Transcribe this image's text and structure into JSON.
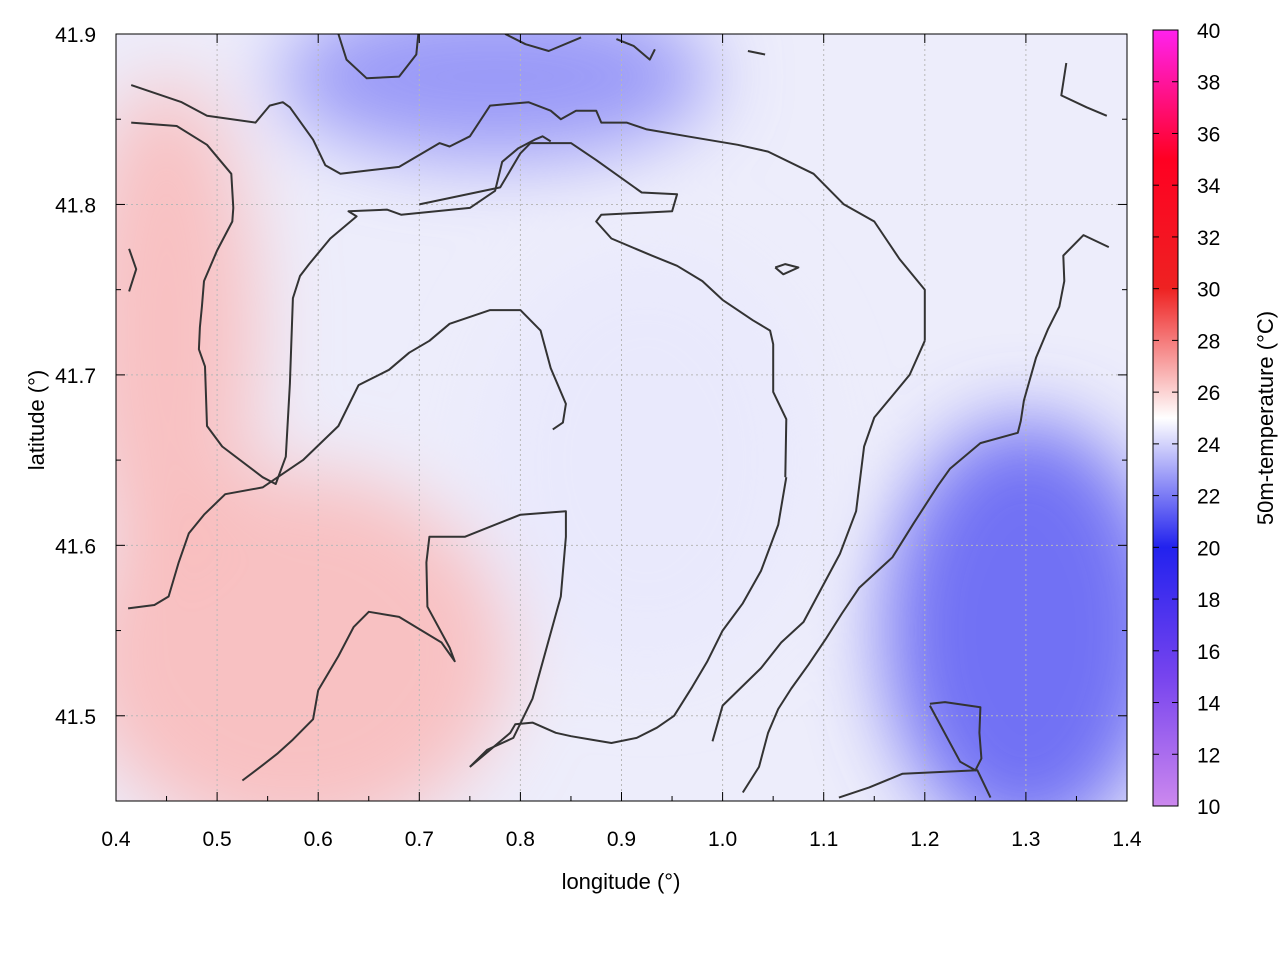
{
  "chart_data": {
    "type": "heatmap",
    "title": "",
    "xlabel": "longitude (°)",
    "ylabel": "latitude (°)",
    "colorbar_label": "50m-temperature (°C)",
    "xlim": [
      0.4,
      1.4
    ],
    "ylim": [
      41.45,
      41.9
    ],
    "xticks": [
      0.4,
      0.5,
      0.6,
      0.7,
      0.8,
      0.9,
      1.0,
      1.1,
      1.2,
      1.3,
      1.4
    ],
    "xtick_labels": [
      "0.4",
      "0.5",
      "0.6",
      "0.7",
      "0.8",
      "0.9",
      "1.0",
      "1.1",
      "1.2",
      "1.3",
      "1.4"
    ],
    "yticks": [
      41.5,
      41.6,
      41.7,
      41.8,
      41.9
    ],
    "ytick_labels": [
      "41.5",
      "41.6",
      "41.7",
      "41.8",
      "41.9"
    ],
    "colorbar_range": [
      10,
      40
    ],
    "colorbar_ticks": [
      10,
      12,
      14,
      16,
      18,
      20,
      22,
      24,
      26,
      28,
      30,
      32,
      34,
      36,
      38,
      40
    ],
    "colorbar_tick_labels": [
      "10",
      "12",
      "14",
      "16",
      "18",
      "20",
      "22",
      "24",
      "26",
      "28",
      "30",
      "32",
      "34",
      "36",
      "38",
      "40"
    ],
    "colormap": [
      {
        "value": 10,
        "color": "#cc88ee"
      },
      {
        "value": 15,
        "color": "#7744ee"
      },
      {
        "value": 20,
        "color": "#2222ee"
      },
      {
        "value": 25,
        "color": "#ffffff"
      },
      {
        "value": 30,
        "color": "#ee2222"
      },
      {
        "value": 35,
        "color": "#ff0022"
      },
      {
        "value": 40,
        "color": "#ff22ee"
      }
    ],
    "grid": true,
    "field_summary": [
      {
        "region": "south-west",
        "lon": [
          0.4,
          0.75
        ],
        "lat": [
          41.45,
          41.62
        ],
        "temperature": 26.5
      },
      {
        "region": "west",
        "lon": [
          0.4,
          0.5
        ],
        "lat": [
          41.6,
          41.85
        ],
        "temperature": 26.5
      },
      {
        "region": "north",
        "lon": [
          0.6,
          0.95
        ],
        "lat": [
          41.85,
          41.9
        ],
        "temperature": 22.5
      },
      {
        "region": "centre",
        "lon": [
          0.8,
          1.05
        ],
        "lat": [
          41.55,
          41.75
        ],
        "temperature": 24.5
      },
      {
        "region": "east",
        "lon": [
          1.2,
          1.4
        ],
        "lat": [
          41.45,
          41.65
        ],
        "temperature": 21.5
      }
    ],
    "contours": [
      {
        "id": "north-rim",
        "lon": [
          0.415,
          0.465,
          0.49,
          0.538,
          0.552,
          0.565,
          0.572,
          0.595,
          0.607,
          0.622,
          0.65,
          0.68,
          0.72,
          0.73,
          0.75,
          0.77,
          0.808,
          0.83,
          0.84,
          0.855,
          0.875,
          0.88,
          0.905,
          0.925,
          0.965,
          1.015,
          1.045,
          1.09,
          1.12,
          1.15,
          1.175,
          1.2,
          1.2
        ],
        "lat": [
          41.87,
          41.86,
          41.852,
          41.848,
          41.858,
          41.86,
          41.857,
          41.838,
          41.823,
          41.818,
          41.82,
          41.822,
          41.836,
          41.834,
          41.84,
          41.858,
          41.86,
          41.855,
          41.85,
          41.855,
          41.855,
          41.848,
          41.848,
          41.844,
          41.84,
          41.835,
          41.831,
          41.818,
          41.8,
          41.79,
          41.768,
          41.75,
          41.72
        ]
      },
      {
        "id": "north-rim-south",
        "lon": [
          1.2,
          1.185,
          1.15,
          1.14,
          1.132,
          1.116,
          1.098,
          1.08,
          1.058,
          1.038,
          1.0,
          0.99
        ],
        "lat": [
          41.72,
          41.7,
          41.675,
          41.658,
          41.62,
          41.595,
          41.575,
          41.555,
          41.543,
          41.528,
          41.506,
          41.485
        ]
      },
      {
        "id": "west-lobe",
        "lon": [
          0.415,
          0.46,
          0.49,
          0.514,
          0.516,
          0.515,
          0.5,
          0.487,
          0.485,
          0.483,
          0.482,
          0.488,
          0.49,
          0.505,
          0.545,
          0.558,
          0.568,
          0.572,
          0.575,
          0.582,
          0.591,
          0.612,
          0.638,
          0.63,
          0.668,
          0.682,
          0.75,
          0.775,
          0.782,
          0.798,
          0.814,
          0.822,
          0.83
        ],
        "lat": [
          41.848,
          41.846,
          41.835,
          41.818,
          41.798,
          41.79,
          41.773,
          41.755,
          41.74,
          41.728,
          41.715,
          41.705,
          41.67,
          41.658,
          41.64,
          41.636,
          41.652,
          41.695,
          41.745,
          41.758,
          41.765,
          41.78,
          41.793,
          41.796,
          41.797,
          41.794,
          41.798,
          41.808,
          41.825,
          41.833,
          41.838,
          41.84,
          41.837
        ]
      },
      {
        "id": "inner-north",
        "lon": [
          0.7,
          0.78,
          0.8,
          0.81,
          0.85,
          0.875,
          0.92,
          0.955,
          0.95,
          0.88,
          0.875,
          0.89,
          0.93,
          0.955,
          0.98,
          1.0,
          1.03,
          1.047,
          1.05,
          1.05,
          1.063,
          1.062
        ],
        "lat": [
          41.8,
          41.81,
          41.83,
          41.836,
          41.836,
          41.826,
          41.807,
          41.806,
          41.796,
          41.794,
          41.79,
          41.78,
          41.77,
          41.764,
          41.755,
          41.744,
          41.732,
          41.726,
          41.718,
          41.69,
          41.674,
          41.64
        ]
      },
      {
        "id": "inner-east",
        "lon": [
          1.063,
          1.055,
          1.038,
          1.02,
          1.0,
          0.985,
          0.97,
          0.952,
          0.935,
          0.915,
          0.89,
          0.87,
          0.85,
          0.835,
          0.812,
          0.795,
          0.79,
          0.75
        ],
        "lat": [
          41.64,
          41.612,
          41.585,
          41.566,
          41.55,
          41.532,
          41.517,
          41.5,
          41.493,
          41.487,
          41.484,
          41.486,
          41.488,
          41.49,
          41.496,
          41.495,
          41.49,
          41.47
        ]
      },
      {
        "id": "inner-west",
        "lon": [
          0.75,
          0.767,
          0.793,
          0.812,
          0.84,
          0.845,
          0.845,
          0.8,
          0.745,
          0.71,
          0.707,
          0.708,
          0.73,
          0.735,
          0.722,
          0.68,
          0.65,
          0.635,
          0.62,
          0.6
        ],
        "lat": [
          41.47,
          41.48,
          41.487,
          41.51,
          41.57,
          41.605,
          41.62,
          41.618,
          41.605,
          41.605,
          41.59,
          41.564,
          41.54,
          41.532,
          41.543,
          41.558,
          41.561,
          41.552,
          41.535,
          41.515
        ]
      },
      {
        "id": "inner-west-b",
        "lon": [
          0.6,
          0.595,
          0.575,
          0.56,
          0.545,
          0.525
        ],
        "lat": [
          41.515,
          41.498,
          41.486,
          41.478,
          41.471,
          41.462
        ]
      },
      {
        "id": "inner-loop",
        "lon": [
          0.832,
          0.842,
          0.845,
          0.83,
          0.82,
          0.8,
          0.77,
          0.73,
          0.71,
          0.69,
          0.67,
          0.64,
          0.62,
          0.585,
          0.545,
          0.508,
          0.487,
          0.472,
          0.462,
          0.452,
          0.438,
          0.412
        ],
        "lat": [
          41.668,
          41.672,
          41.683,
          41.704,
          41.726,
          41.738,
          41.738,
          41.73,
          41.72,
          41.713,
          41.703,
          41.694,
          41.67,
          41.65,
          41.634,
          41.63,
          41.618,
          41.607,
          41.59,
          41.57,
          41.565,
          41.563
        ]
      },
      {
        "id": "south-east",
        "lon": [
          1.02,
          1.036,
          1.045,
          1.055,
          1.068,
          1.085,
          1.102,
          1.118,
          1.135,
          1.168,
          1.189,
          1.213,
          1.225,
          1.235,
          1.255,
          1.292,
          1.295,
          1.298,
          1.31,
          1.322,
          1.333,
          1.338,
          1.337,
          1.357,
          1.382
        ],
        "lat": [
          41.455,
          41.47,
          41.49,
          41.504,
          41.516,
          41.53,
          41.545,
          41.56,
          41.575,
          41.593,
          41.613,
          41.635,
          41.645,
          41.65,
          41.66,
          41.666,
          41.673,
          41.685,
          41.71,
          41.727,
          41.74,
          41.755,
          41.77,
          41.782,
          41.775
        ]
      },
      {
        "id": "south-east-b",
        "lon": [
          1.115,
          1.145,
          1.178,
          1.252,
          1.265
        ],
        "lat": [
          41.452,
          41.458,
          41.466,
          41.468,
          41.452
        ]
      },
      {
        "id": "pocket-south-east",
        "lon": [
          1.205,
          1.22,
          1.255,
          1.254,
          1.256,
          1.25,
          1.235,
          1.205
        ],
        "lat": [
          41.507,
          41.508,
          41.505,
          41.49,
          41.475,
          41.468,
          41.473,
          41.506
        ]
      },
      {
        "id": "north-edge-a",
        "lon": [
          0.62,
          0.628,
          0.648,
          0.68,
          0.697,
          0.699
        ],
        "lat": [
          41.9,
          41.885,
          41.874,
          41.875,
          41.888,
          41.9
        ]
      },
      {
        "id": "north-edge-b",
        "lon": [
          0.785,
          0.805,
          0.828,
          0.86
        ],
        "lat": [
          41.9,
          41.894,
          41.89,
          41.898
        ]
      },
      {
        "id": "north-edge-c",
        "lon": [
          0.895,
          0.912,
          0.928,
          0.933
        ],
        "lat": [
          41.897,
          41.893,
          41.885,
          41.891
        ]
      },
      {
        "id": "north-edge-d",
        "lon": [
          1.025,
          1.042
        ],
        "lat": [
          41.89,
          41.888
        ]
      },
      {
        "id": "north-edge-e",
        "lon": [
          1.34,
          1.335,
          1.36,
          1.38
        ],
        "lat": [
          41.883,
          41.864,
          41.857,
          41.852
        ]
      },
      {
        "id": "small-west",
        "lon": [
          0.413,
          0.42,
          0.413
        ],
        "lat": [
          41.774,
          41.762,
          41.749
        ]
      },
      {
        "id": "small-east",
        "lon": [
          1.052,
          1.062,
          1.075,
          1.06,
          1.052
        ],
        "lat": [
          41.763,
          41.765,
          41.763,
          41.759,
          41.763
        ]
      }
    ]
  }
}
